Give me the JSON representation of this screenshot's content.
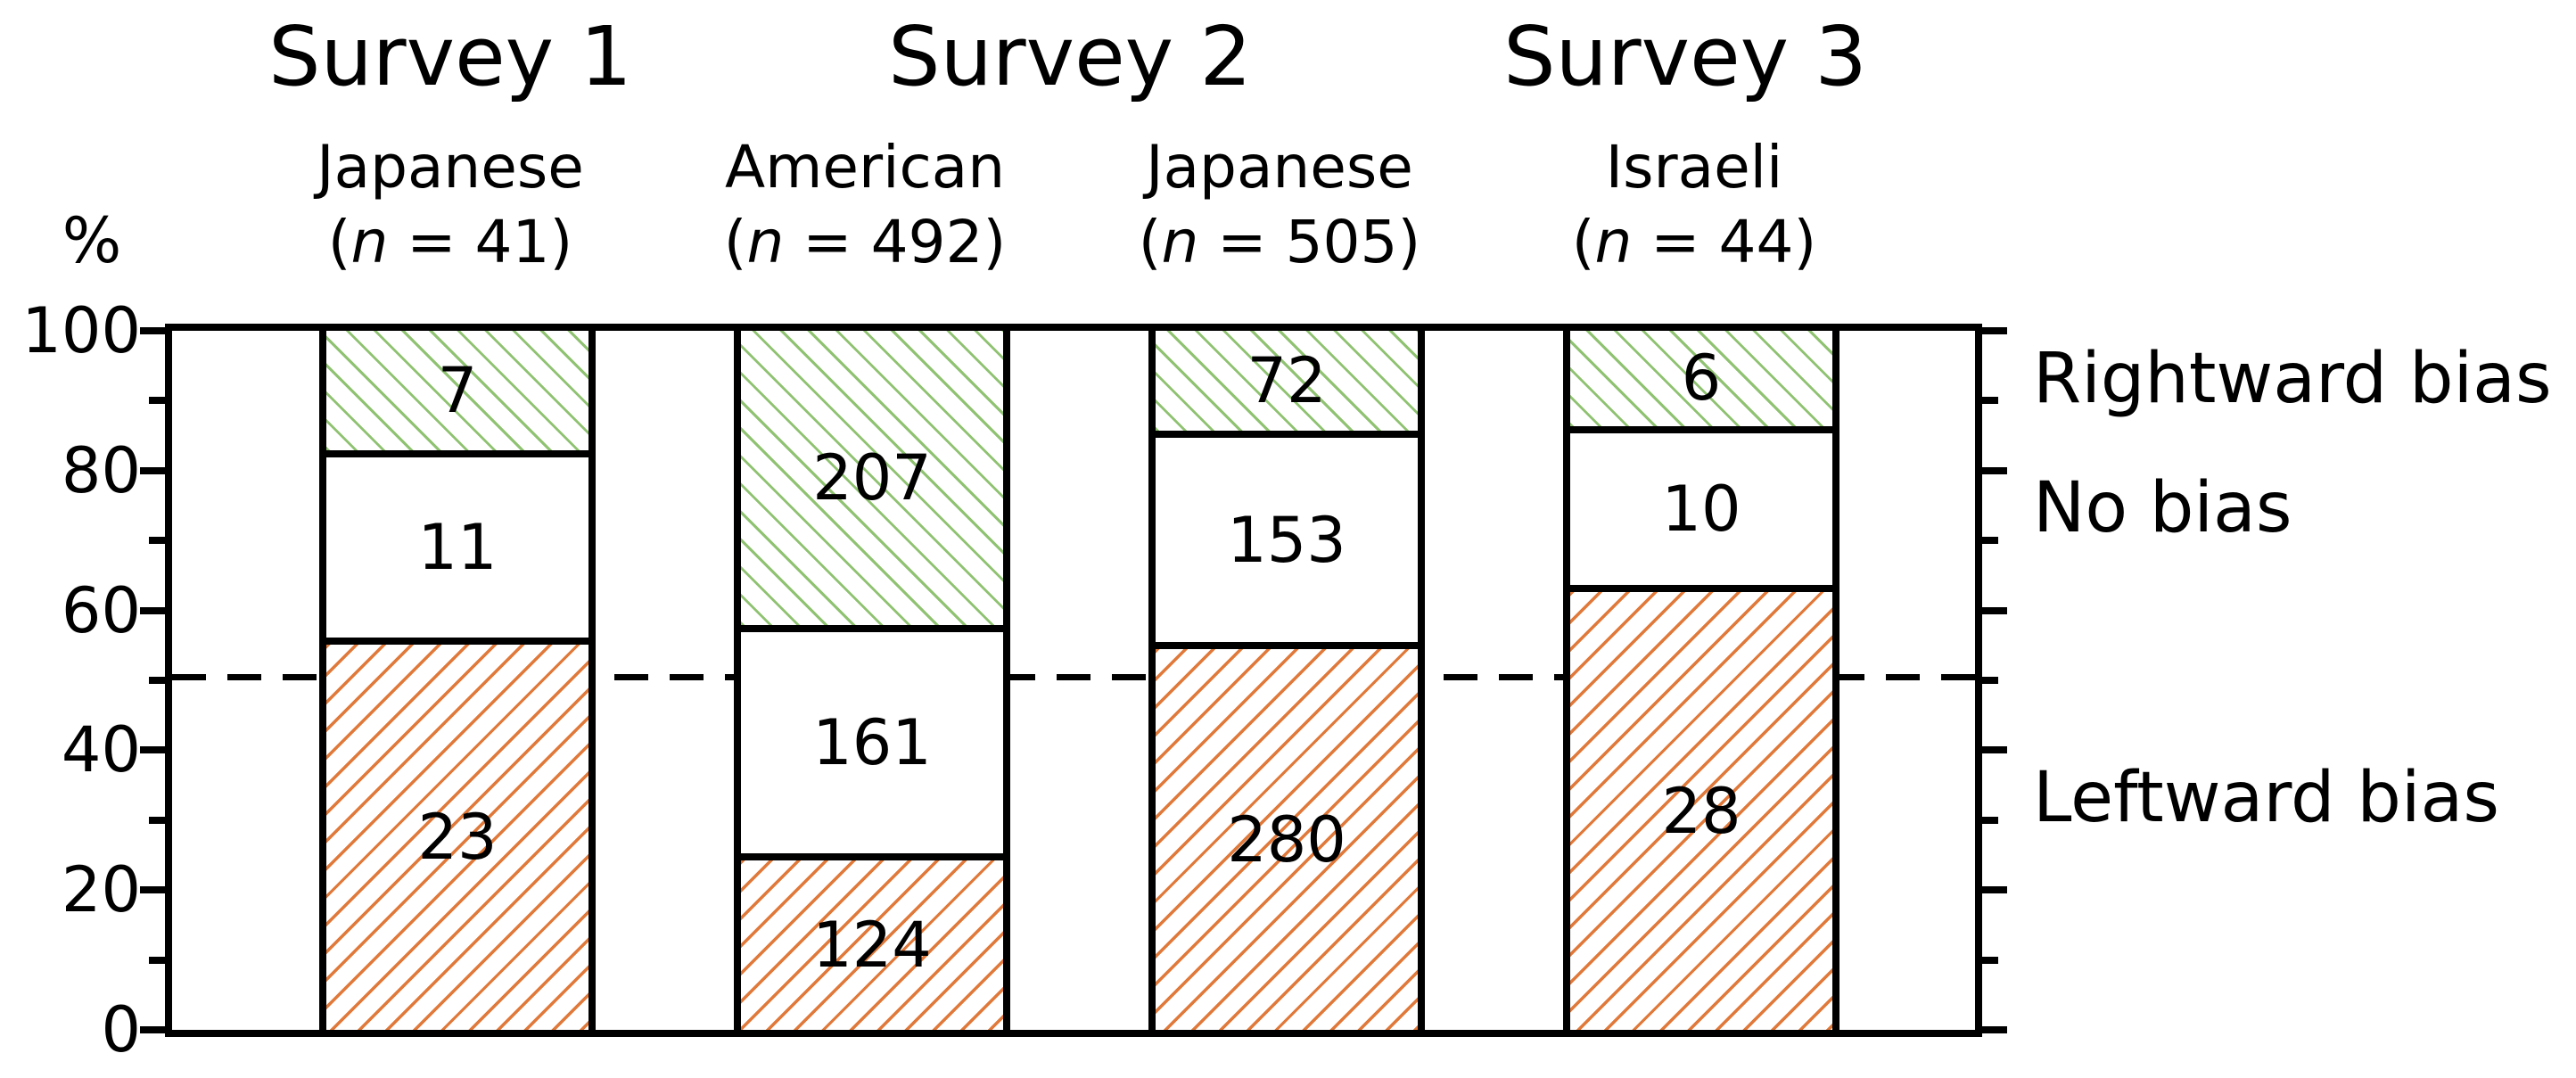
{
  "header": {
    "percent_label": "%",
    "surveys": [
      {
        "label": "Survey 1"
      },
      {
        "label": "Survey 2"
      },
      {
        "label": "Survey 3"
      }
    ]
  },
  "legend": {
    "rightward_label": "Rightward bias",
    "no_bias_label": "No bias",
    "leftward_label": "Leftward bias"
  },
  "colors": {
    "rightward_hatch": "#8fc271",
    "leftward_hatch": "#e0793a",
    "axis": "#000000",
    "background": "#ffffff"
  },
  "chart_data": {
    "type": "bar",
    "stacked": true,
    "note": "segment heights are counts converted to percent of group n",
    "ylabel": "%",
    "ylim": [
      0,
      100
    ],
    "y_major_ticks": [
      0,
      20,
      40,
      60,
      80,
      100
    ],
    "y_minor_ticks": [
      10,
      30,
      50,
      70,
      90
    ],
    "reference_line_y": 50,
    "series_top_to_bottom": [
      "rightward",
      "no_bias",
      "leftward"
    ],
    "groups": [
      {
        "survey": "Survey 1",
        "nationality": "Japanese",
        "n": 41,
        "n_text": {
          "open": "(",
          "var": "n",
          "rest": " = 41)"
        },
        "rightward": 7,
        "no_bias": 11,
        "leftward": 23
      },
      {
        "survey": "Survey 2",
        "nationality": "American",
        "n": 492,
        "n_text": {
          "open": "(",
          "var": "n",
          "rest": " = 492)"
        },
        "rightward": 207,
        "no_bias": 161,
        "leftward": 124
      },
      {
        "survey": "Survey 2",
        "nationality": "Japanese",
        "n": 505,
        "n_text": {
          "open": "(",
          "var": "n",
          "rest": " = 505)"
        },
        "rightward": 72,
        "no_bias": 153,
        "leftward": 280
      },
      {
        "survey": "Survey 3",
        "nationality": "Israeli",
        "n": 44,
        "n_text": {
          "open": "(",
          "var": "n",
          "rest": " = 44)"
        },
        "rightward": 6,
        "no_bias": 10,
        "leftward": 28
      }
    ]
  }
}
